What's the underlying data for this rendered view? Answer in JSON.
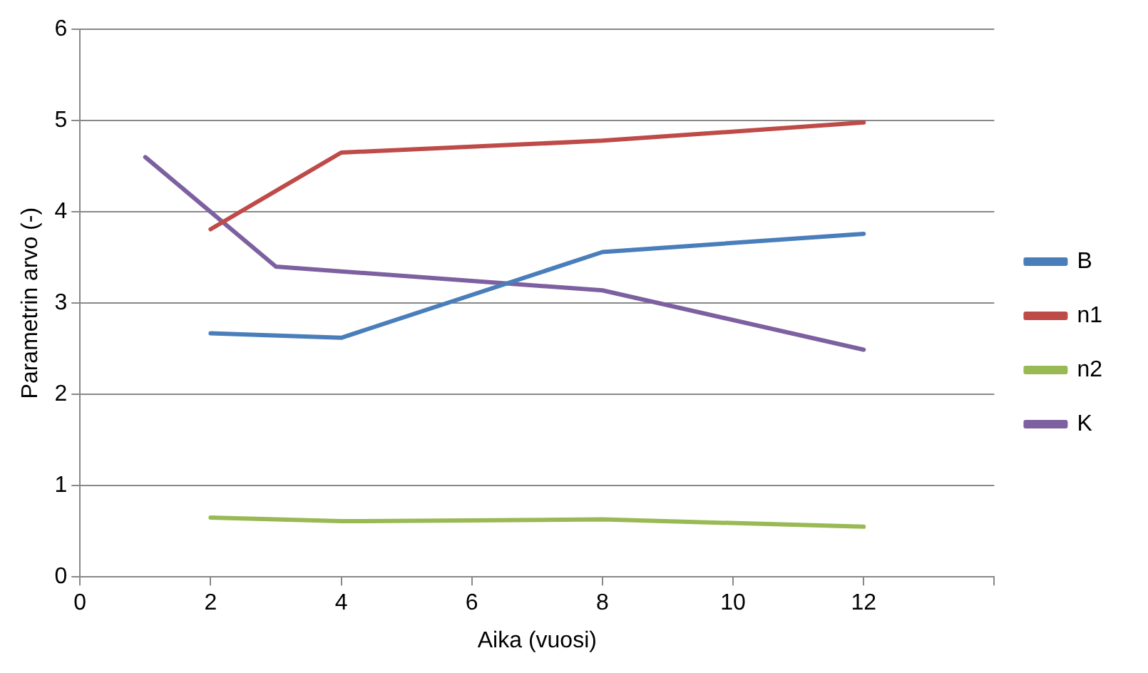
{
  "chart_data": {
    "type": "line",
    "xlabel": "Aika (vuosi)",
    "ylabel": "Parametrin arvo (-)",
    "x": [
      2,
      4,
      8,
      12
    ],
    "series": [
      {
        "name": "B",
        "color": "#4a7ebb",
        "values": [
          2.67,
          2.62,
          3.56,
          3.76
        ]
      },
      {
        "name": "n1",
        "color": "#be4b48",
        "values": [
          3.81,
          4.65,
          4.78,
          4.98
        ]
      },
      {
        "name": "n2",
        "color": "#98b954",
        "values": [
          0.65,
          0.61,
          0.63,
          0.55
        ]
      },
      {
        "name": "K",
        "color": "#7d60a0",
        "x": [
          1,
          3,
          8,
          12
        ],
        "values": [
          4.6,
          3.4,
          3.14,
          2.49
        ]
      }
    ],
    "xlim": [
      0,
      14
    ],
    "xticks": [
      0,
      2,
      4,
      6,
      8,
      10,
      12,
      {
        "value": 14,
        "label": null
      }
    ],
    "ylim": [
      0,
      6
    ],
    "yticks": [
      0,
      1,
      2,
      3,
      4,
      5,
      6
    ],
    "grid": "y",
    "legend": "right",
    "marker": "none",
    "line_style": "solid"
  }
}
